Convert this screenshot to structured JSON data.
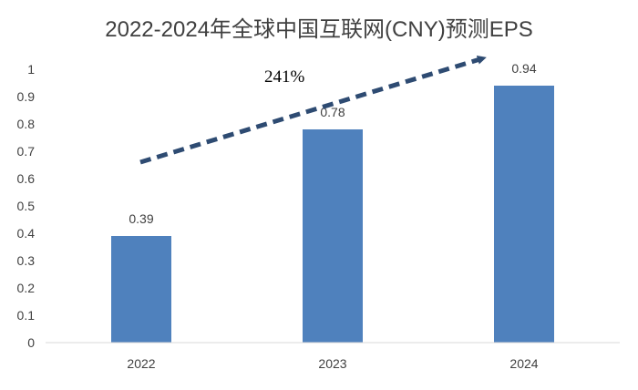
{
  "chart_data": {
    "type": "bar",
    "title": "2022-2024年全球中国互联网(CNY)预测EPS",
    "categories": [
      "2022",
      "2023",
      "2024"
    ],
    "values": [
      0.39,
      0.78,
      0.94
    ],
    "data_labels": [
      "0.39",
      "0.78",
      "0.94"
    ],
    "ylim": [
      0,
      1
    ],
    "yticks": [
      0,
      0.1,
      0.2,
      0.3,
      0.4,
      0.5,
      0.6,
      0.7,
      0.8,
      0.9,
      1
    ],
    "ytick_labels": [
      "0",
      "0.1",
      "0.2",
      "0.3",
      "0.4",
      "0.5",
      "0.6",
      "0.7",
      "0.8",
      "0.9",
      "1"
    ],
    "xlabel": "",
    "ylabel": "",
    "grid": false,
    "legend": "none",
    "bar_color": "#4f81bd",
    "annotation": {
      "text": "241%",
      "style": "dashed arrow rising from 2022 bar toward 2024 bar",
      "color": "#2e4b72"
    }
  }
}
